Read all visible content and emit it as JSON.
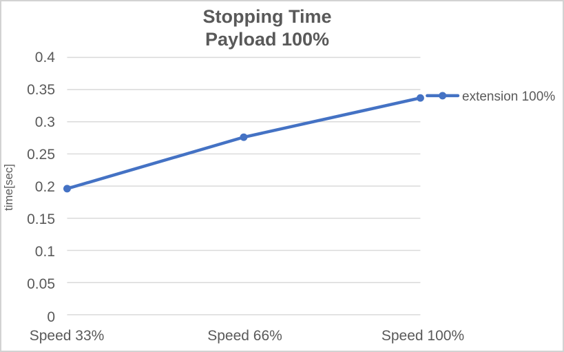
{
  "chart_data": {
    "type": "line",
    "title": "Stopping Time",
    "subtitle": "Payload 100%",
    "categories": [
      "Speed 33%",
      "Speed 66%",
      "Speed 100%"
    ],
    "series": [
      {
        "name": "extension 100%",
        "values": [
          0.196,
          0.276,
          0.337
        ]
      }
    ],
    "xlabel": "",
    "ylabel": "time[sec]",
    "ylim": [
      0,
      0.4
    ],
    "ytick_step": 0.05,
    "ytick_labels": [
      "0",
      "0.05",
      "0.1",
      "0.15",
      "0.2",
      "0.25",
      "0.3",
      "0.35",
      "0.4"
    ],
    "grid": "horizontal",
    "legend_position": "right",
    "colors": {
      "series": "#4472C4",
      "gridline": "#D9D9D9",
      "text": "#595959",
      "border": "#D2D2D2",
      "background": "#FFFFFF"
    }
  }
}
